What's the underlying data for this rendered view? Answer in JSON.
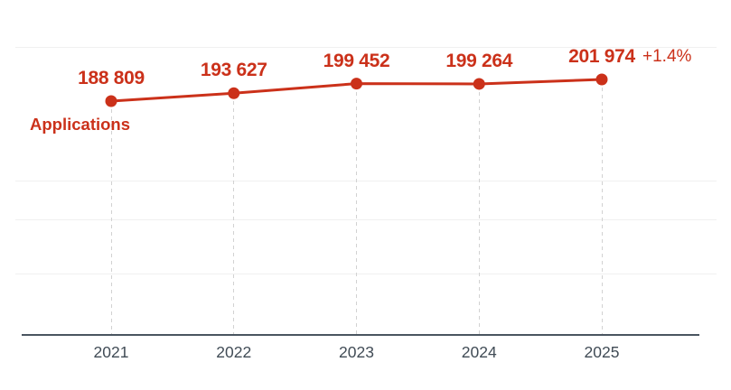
{
  "colors": {
    "accent_red": "#cb311a",
    "axis_dark": "#4a5560",
    "year_text": "#414c56",
    "dashed_guide": "#d2d2d2",
    "faint_grid": "#f0f0f0"
  },
  "chart_data": {
    "type": "line",
    "series_label": "Applications",
    "categories": [
      "2021",
      "2022",
      "2023",
      "2024",
      "2025"
    ],
    "values": [
      188809,
      193627,
      199452,
      199264,
      201974
    ],
    "value_labels": [
      "188 809",
      "193 627",
      "199 452",
      "199 264",
      "201 974"
    ],
    "annotation": "+1.4%",
    "title": "",
    "xlabel": "",
    "ylabel": "",
    "legend": "none",
    "grid": "faint horizontal lines, dashed vertical guides from each point to x-axis"
  }
}
